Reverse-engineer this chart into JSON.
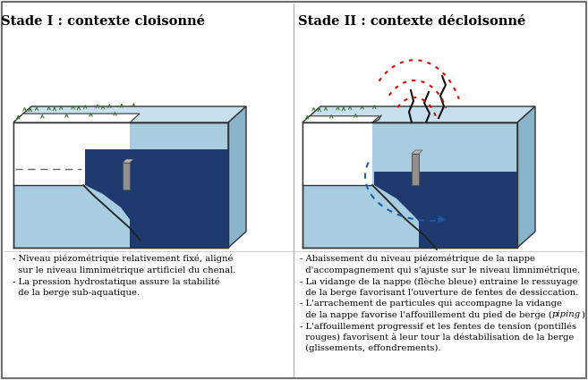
{
  "title_left": "Stade I : contexte cloisonné",
  "title_right": "Stade II : contexte décloisonné",
  "light_blue": "#a8cce0",
  "dark_blue": "#1e3a6e",
  "mid_blue": "#4a7aaa",
  "top_blue": "#c8dff0",
  "right_blue": "#8ab4cc",
  "white_bank": "#ffffff",
  "top_bank": "#e8e8e8",
  "green_color": "#3a7a30",
  "gray_weir": "#909090",
  "red_color": "#cc1100",
  "arrow_blue": "#1a5aaa",
  "text_left_lines": [
    "- Niveau piézométrique relativement fixé, aligné",
    "  sur le niveau limnimétrique artificiel du chenal.",
    "- La pression hydrostatique assure la stabilité",
    "  de la berge sub-aquatique."
  ],
  "text_right_line1": "- Abaissement du niveau piézométrique de la nappe",
  "text_right_line2": "  d'accompagnement qui s'ajuste sur le niveau limnimétrique.",
  "text_right_line3": "- La vidange de la nappe (flèche bleue) entraine le ressuyage",
  "text_right_line4": "  de la berge favorisant l'ouverture de fentes de dessiccation.",
  "text_right_line5": "- L'arrachement de particules qui accompagne la vidange",
  "text_right_line6a": "  de la nappe favorise l'affouillement du pied de berge (",
  "text_right_line6b": "piping",
  "text_right_line6c": ")",
  "text_right_line7": "- L'affouillement progressif et les fentes de tension (pontillés",
  "text_right_line8": "  rouges) favorisent à leur tour la déstabilisation de la berge",
  "text_right_line9": "  (glissements, effondrements).",
  "border_color": "#555555",
  "divider_color": "#aaaaaa",
  "bg_color": "#f0f0f0"
}
